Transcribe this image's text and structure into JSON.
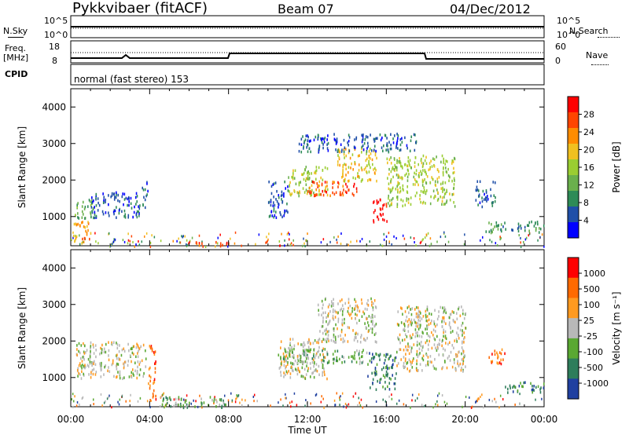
{
  "header": {
    "title": "Pykkvibaer (fitACF)",
    "beam": "Beam 07",
    "date": "04/Dec/2012"
  },
  "top_panels": {
    "nsky_label": "N.Sky",
    "nsearch_label": "N.Search",
    "nsky_scale_top": "10^5",
    "nsky_scale_bottom": "10^0",
    "freq_label_top": "Freq.",
    "freq_label_unit": "[MHz]",
    "freq_scale_top": "18",
    "freq_scale_bottom": "8",
    "nave_label": "Nave",
    "nave_scale_top": "60",
    "nave_scale_bottom": "0",
    "cpid_label": "CPID",
    "cpid_text": "normal (fast stereo) 153"
  },
  "colors": {
    "power": [
      "#0000ff",
      "#1f4fa8",
      "#2e8b57",
      "#6ab04c",
      "#9acd32",
      "#f0c020",
      "#ff8c00",
      "#ff4500",
      "#ff0000"
    ],
    "velocity": [
      "#2040a0",
      "#2e7d5b",
      "#5aa832",
      "#b8b8b8",
      "#ff9a20",
      "#ff6a00",
      "#ff0000"
    ],
    "gray": "#bdbdbd"
  },
  "chart_data": [
    {
      "type": "heatmap",
      "name": "power",
      "ylabel": "Slant Range [km]",
      "colorbar_label": "Power [dB]",
      "colorbar_ticks": [
        "28",
        "24",
        "20",
        "16",
        "12",
        "8",
        "4"
      ],
      "y_ticks": [
        "1000",
        "2000",
        "3000",
        "4000"
      ],
      "ylim": [
        200,
        4500
      ],
      "regions": [
        {
          "t": [
            0.2,
            1.2
          ],
          "r": [
            950,
            1500
          ],
          "level": 3
        },
        {
          "t": [
            1.0,
            3.5
          ],
          "r": [
            1000,
            1700
          ],
          "level": 1
        },
        {
          "t": [
            0.1,
            1.0
          ],
          "r": [
            300,
            900
          ],
          "level": 6
        },
        {
          "t": [
            3.6,
            3.9
          ],
          "r": [
            1200,
            2000
          ],
          "level": 1
        },
        {
          "t": [
            6.3,
            8.0
          ],
          "r": [
            200,
            350
          ],
          "level": 7
        },
        {
          "t": [
            10.0,
            11.0
          ],
          "r": [
            1000,
            2000
          ],
          "level": 1
        },
        {
          "t": [
            11.0,
            13.0
          ],
          "r": [
            1600,
            2400
          ],
          "level": 4
        },
        {
          "t": [
            12.0,
            14.5
          ],
          "r": [
            1600,
            2000
          ],
          "level": 7
        },
        {
          "t": [
            13.5,
            15.5
          ],
          "r": [
            2000,
            2900
          ],
          "level": 5
        },
        {
          "t": [
            15.3,
            16.0
          ],
          "r": [
            800,
            1500
          ],
          "level": 8
        },
        {
          "t": [
            16.0,
            19.5
          ],
          "r": [
            1300,
            2700
          ],
          "level": 4
        },
        {
          "t": [
            11.5,
            17.5
          ],
          "r": [
            2800,
            3300
          ],
          "level": 1
        },
        {
          "t": [
            20.5,
            21.5
          ],
          "r": [
            1300,
            2000
          ],
          "level": 1
        },
        {
          "t": [
            21.0,
            24.0
          ],
          "r": [
            600,
            900
          ],
          "level": 2
        }
      ]
    },
    {
      "type": "heatmap",
      "name": "velocity",
      "ylabel": "Slant Range [km]",
      "colorbar_label": "Velocity [m s⁻¹]",
      "colorbar_ticks": [
        "1000",
        "500",
        "100",
        "25",
        "-25",
        "-100",
        "-500",
        "-1000"
      ],
      "y_ticks": [
        "1000",
        "2000",
        "3000",
        "4000"
      ],
      "ylim": [
        200,
        4500
      ],
      "xlabel": "Time UT",
      "x_ticks": [
        "00:00",
        "04:00",
        "08:00",
        "12:00",
        "16:00",
        "20:00",
        "00:00"
      ],
      "regions": [
        {
          "t": [
            0.2,
            3.8
          ],
          "r": [
            1000,
            2000
          ],
          "level": 3
        },
        {
          "t": [
            3.9,
            4.3
          ],
          "r": [
            400,
            1900
          ],
          "level": 5
        },
        {
          "t": [
            4.5,
            8.0
          ],
          "r": [
            200,
            500
          ],
          "level": 2
        },
        {
          "t": [
            10.5,
            13.0
          ],
          "r": [
            1000,
            2100
          ],
          "level": 3
        },
        {
          "t": [
            10.5,
            15.0
          ],
          "r": [
            1400,
            1800
          ],
          "level": 2
        },
        {
          "t": [
            12.5,
            15.5
          ],
          "r": [
            2000,
            3200
          ],
          "level": 3
        },
        {
          "t": [
            15.0,
            16.5
          ],
          "r": [
            700,
            1700
          ],
          "level": 1
        },
        {
          "t": [
            16.5,
            20.0
          ],
          "r": [
            1200,
            3000
          ],
          "level": 3
        },
        {
          "t": [
            21.0,
            22.0
          ],
          "r": [
            1400,
            1800
          ],
          "level": 5
        },
        {
          "t": [
            22.0,
            24.0
          ],
          "r": [
            600,
            900
          ],
          "level": 1
        }
      ]
    }
  ]
}
